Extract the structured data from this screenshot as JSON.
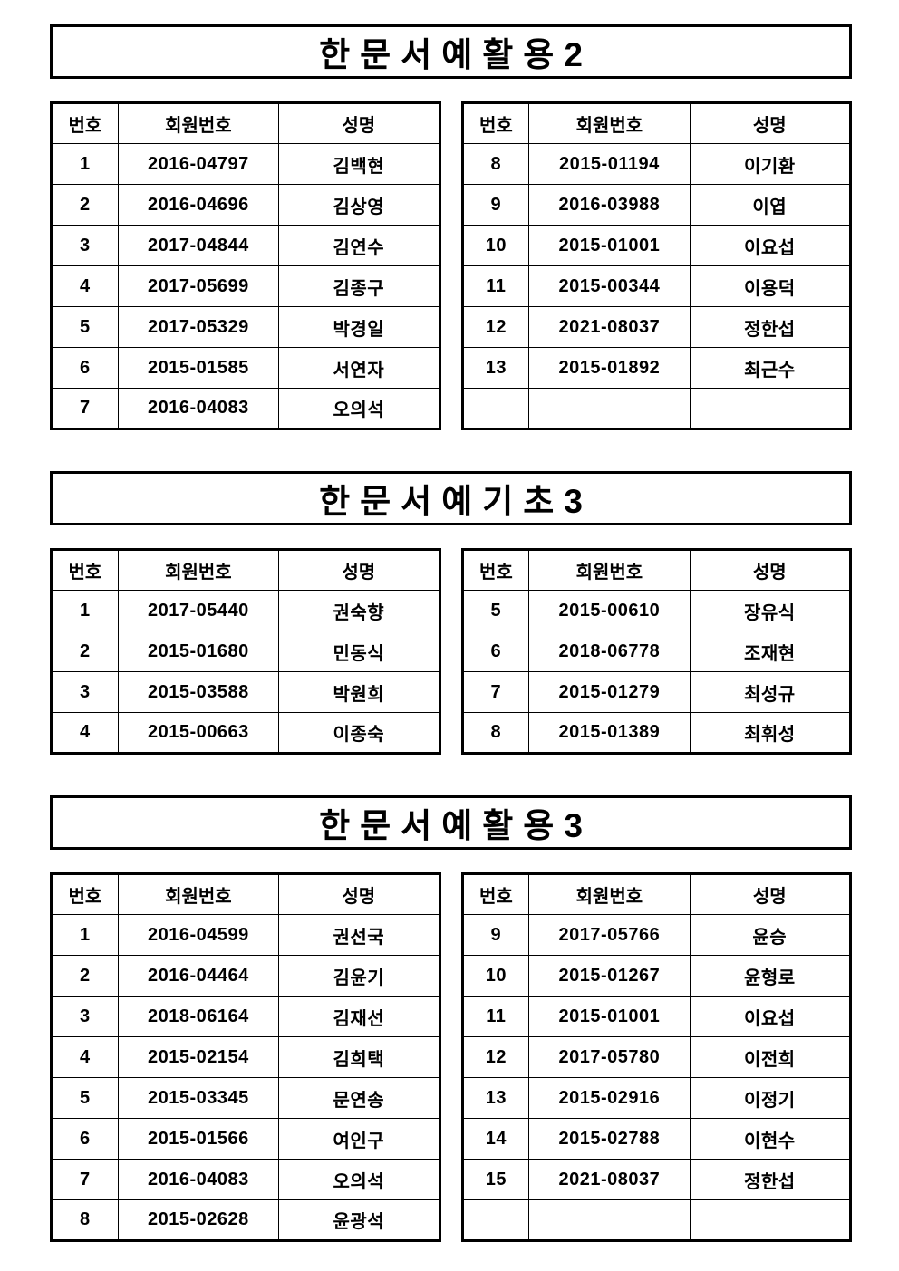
{
  "document": {
    "background": "#ffffff",
    "text_color": "#000000",
    "border_color": "#000000"
  },
  "table_headers": [
    "번호",
    "회원번호",
    "성명"
  ],
  "sections": [
    {
      "title": "한문서예활용2",
      "tables": [
        {
          "rows": [
            [
              "1",
              "2016-04797",
              "김백현"
            ],
            [
              "2",
              "2016-04696",
              "김상영"
            ],
            [
              "3",
              "2017-04844",
              "김연수"
            ],
            [
              "4",
              "2017-05699",
              "김종구"
            ],
            [
              "5",
              "2017-05329",
              "박경일"
            ],
            [
              "6",
              "2015-01585",
              "서연자"
            ],
            [
              "7",
              "2016-04083",
              "오의석"
            ]
          ]
        },
        {
          "rows": [
            [
              "8",
              "2015-01194",
              "이기환"
            ],
            [
              "9",
              "2016-03988",
              "이엽"
            ],
            [
              "10",
              "2015-01001",
              "이요섭"
            ],
            [
              "11",
              "2015-00344",
              "이용덕"
            ],
            [
              "12",
              "2021-08037",
              "정한섭"
            ],
            [
              "13",
              "2015-01892",
              "최근수"
            ],
            [
              "",
              "",
              ""
            ]
          ]
        }
      ]
    },
    {
      "title": "한문서예기초3",
      "tables": [
        {
          "rows": [
            [
              "1",
              "2017-05440",
              "권숙향"
            ],
            [
              "2",
              "2015-01680",
              "민동식"
            ],
            [
              "3",
              "2015-03588",
              "박원희"
            ],
            [
              "4",
              "2015-00663",
              "이종숙"
            ]
          ]
        },
        {
          "rows": [
            [
              "5",
              "2015-00610",
              "장유식"
            ],
            [
              "6",
              "2018-06778",
              "조재현"
            ],
            [
              "7",
              "2015-01279",
              "최성규"
            ],
            [
              "8",
              "2015-01389",
              "최휘성"
            ]
          ]
        }
      ]
    },
    {
      "title": "한문서예활용3",
      "tables": [
        {
          "rows": [
            [
              "1",
              "2016-04599",
              "권선국"
            ],
            [
              "2",
              "2016-04464",
              "김윤기"
            ],
            [
              "3",
              "2018-06164",
              "김재선"
            ],
            [
              "4",
              "2015-02154",
              "김희택"
            ],
            [
              "5",
              "2015-03345",
              "문연송"
            ],
            [
              "6",
              "2015-01566",
              "여인구"
            ],
            [
              "7",
              "2016-04083",
              "오의석"
            ],
            [
              "8",
              "2015-02628",
              "윤광석"
            ]
          ]
        },
        {
          "rows": [
            [
              "9",
              "2017-05766",
              "윤승"
            ],
            [
              "10",
              "2015-01267",
              "윤형로"
            ],
            [
              "11",
              "2015-01001",
              "이요섭"
            ],
            [
              "12",
              "2017-05780",
              "이전희"
            ],
            [
              "13",
              "2015-02916",
              "이정기"
            ],
            [
              "14",
              "2015-02788",
              "이현수"
            ],
            [
              "15",
              "2021-08037",
              "정한섭"
            ],
            [
              "",
              "",
              ""
            ]
          ]
        }
      ]
    }
  ]
}
